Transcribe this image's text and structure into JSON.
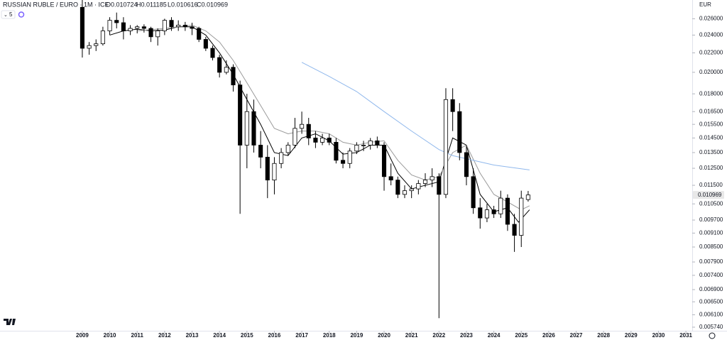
{
  "chart_data": {
    "type": "candlestick",
    "title": "RUSSIAN RUBLE / EURO · 1M · ICE",
    "ohlc_header": [
      "O0.010724",
      "H0.011185",
      "L0.010616",
      "C0.010969"
    ],
    "indicator_badge": "5",
    "currency": "EUR",
    "log_scale": true,
    "up_color": "#ffffff",
    "down_color": "#000000",
    "x": [
      2009.0,
      2009.25,
      2009.5,
      2009.75,
      2010.0,
      2010.25,
      2010.5,
      2010.75,
      2011.0,
      2011.25,
      2011.5,
      2011.75,
      2012.0,
      2012.25,
      2012.5,
      2012.75,
      2013.0,
      2013.25,
      2013.5,
      2013.75,
      2014.0,
      2014.25,
      2014.5,
      2014.75,
      2015.0,
      2015.25,
      2015.5,
      2015.75,
      2016.0,
      2016.25,
      2016.5,
      2016.75,
      2017.0,
      2017.25,
      2017.5,
      2017.75,
      2018.0,
      2018.25,
      2018.5,
      2018.75,
      2019.0,
      2019.25,
      2019.5,
      2019.75,
      2020.0,
      2020.25,
      2020.5,
      2020.75,
      2021.0,
      2021.25,
      2021.5,
      2021.75,
      2022.0,
      2022.25,
      2022.5,
      2022.75,
      2023.0,
      2023.25,
      2023.5,
      2023.75,
      2024.0,
      2024.25,
      2024.5,
      2024.75,
      2025.0,
      2025.25
    ],
    "open": [
      0.0275,
      0.0225,
      0.0228,
      0.023,
      0.0245,
      0.0258,
      0.0255,
      0.0245,
      0.0248,
      0.025,
      0.0248,
      0.0238,
      0.0245,
      0.0258,
      0.025,
      0.0252,
      0.025,
      0.0248,
      0.0235,
      0.0225,
      0.0215,
      0.02,
      0.0205,
      0.0188,
      0.014,
      0.0165,
      0.014,
      0.0132,
      0.0118,
      0.0128,
      0.0135,
      0.014,
      0.0152,
      0.0155,
      0.0145,
      0.0142,
      0.0145,
      0.0142,
      0.013,
      0.0128,
      0.0136,
      0.014,
      0.014,
      0.0143,
      0.014,
      0.012,
      0.0118,
      0.011,
      0.0112,
      0.0113,
      0.0116,
      0.0118,
      0.012,
      0.011,
      0.0175,
      0.0165,
      0.0135,
      0.012,
      0.0103,
      0.0098,
      0.0102,
      0.01,
      0.0108,
      0.0095,
      0.009,
      0.010724
    ],
    "high": [
      0.0285,
      0.0232,
      0.0235,
      0.025,
      0.0262,
      0.0268,
      0.0262,
      0.0252,
      0.0252,
      0.0253,
      0.025,
      0.0248,
      0.026,
      0.0262,
      0.0258,
      0.0256,
      0.0255,
      0.025,
      0.0238,
      0.0228,
      0.0218,
      0.0212,
      0.0208,
      0.0192,
      0.018,
      0.0175,
      0.015,
      0.014,
      0.0132,
      0.0138,
      0.0142,
      0.016,
      0.0165,
      0.016,
      0.015,
      0.0148,
      0.0148,
      0.0145,
      0.0135,
      0.0138,
      0.0142,
      0.0143,
      0.0145,
      0.0146,
      0.0142,
      0.0128,
      0.012,
      0.0115,
      0.0115,
      0.0118,
      0.0122,
      0.0125,
      0.0122,
      0.0185,
      0.0185,
      0.0172,
      0.014,
      0.0125,
      0.0108,
      0.0105,
      0.0104,
      0.0112,
      0.011,
      0.01,
      0.0112,
      0.011185
    ],
    "low": [
      0.0215,
      0.0218,
      0.0222,
      0.0228,
      0.024,
      0.0248,
      0.0235,
      0.024,
      0.0242,
      0.0243,
      0.0232,
      0.0228,
      0.024,
      0.0245,
      0.0245,
      0.0245,
      0.024,
      0.0232,
      0.0222,
      0.0212,
      0.0195,
      0.0198,
      0.0182,
      0.01,
      0.0125,
      0.0135,
      0.0125,
      0.0108,
      0.011,
      0.0125,
      0.0133,
      0.0138,
      0.0148,
      0.014,
      0.0138,
      0.014,
      0.014,
      0.0128,
      0.0125,
      0.0125,
      0.0134,
      0.0136,
      0.0137,
      0.0138,
      0.0112,
      0.0115,
      0.0108,
      0.0108,
      0.0108,
      0.011,
      0.0114,
      0.0114,
      0.006,
      0.0108,
      0.015,
      0.013,
      0.0115,
      0.01,
      0.0093,
      0.0096,
      0.0098,
      0.0098,
      0.0092,
      0.0083,
      0.0085,
      0.010616
    ],
    "close": [
      0.0225,
      0.0228,
      0.023,
      0.0245,
      0.0258,
      0.0255,
      0.0245,
      0.0248,
      0.025,
      0.0248,
      0.0238,
      0.0245,
      0.0258,
      0.025,
      0.0252,
      0.025,
      0.0248,
      0.0235,
      0.0225,
      0.0215,
      0.02,
      0.0205,
      0.0188,
      0.014,
      0.0165,
      0.014,
      0.0132,
      0.0118,
      0.0128,
      0.0135,
      0.014,
      0.0152,
      0.0155,
      0.0145,
      0.0142,
      0.0145,
      0.0142,
      0.013,
      0.0128,
      0.0136,
      0.014,
      0.014,
      0.0143,
      0.014,
      0.012,
      0.0118,
      0.011,
      0.0112,
      0.0113,
      0.0116,
      0.0118,
      0.012,
      0.011,
      0.0175,
      0.0165,
      0.0135,
      0.012,
      0.0103,
      0.0098,
      0.0102,
      0.01,
      0.0108,
      0.0095,
      0.009,
      0.0108,
      0.010969
    ],
    "series": [
      {
        "color": "#000000",
        "x": [
          2010.0,
          2010.5,
          2011.0,
          2011.5,
          2012.0,
          2012.5,
          2013.0,
          2013.5,
          2014.0,
          2014.5,
          2015.0,
          2015.5,
          2016.0,
          2016.5,
          2017.0,
          2017.5,
          2018.0,
          2018.5,
          2019.0,
          2019.5,
          2020.0,
          2020.5,
          2021.0,
          2021.5,
          2022.0,
          2022.5,
          2023.0,
          2023.5,
          2024.0,
          2024.5,
          2024.9,
          2025.3
        ],
        "values": [
          0.024,
          0.0245,
          0.0247,
          0.0245,
          0.0246,
          0.025,
          0.025,
          0.024,
          0.022,
          0.0198,
          0.0175,
          0.0155,
          0.0135,
          0.0133,
          0.0145,
          0.0148,
          0.0143,
          0.0134,
          0.0135,
          0.014,
          0.014,
          0.0122,
          0.0113,
          0.0115,
          0.0117,
          0.0145,
          0.014,
          0.011,
          0.0101,
          0.0103,
          0.0096,
          0.0102
        ]
      },
      {
        "color": "#9a9a9a",
        "x": [
          2011.0,
          2012.0,
          2013.0,
          2013.5,
          2014.0,
          2014.5,
          2015.0,
          2015.5,
          2016.0,
          2016.5,
          2017.0,
          2017.5,
          2018.0,
          2018.5,
          2019.0,
          2019.5,
          2020.0,
          2020.5,
          2021.0,
          2021.5,
          2022.0,
          2022.5,
          2023.0,
          2023.5,
          2024.0,
          2024.5,
          2025.0,
          2025.3
        ],
        "values": [
          0.0245,
          0.0248,
          0.0252,
          0.0245,
          0.0232,
          0.0212,
          0.019,
          0.017,
          0.0152,
          0.0148,
          0.015,
          0.015,
          0.0148,
          0.0142,
          0.014,
          0.0142,
          0.0143,
          0.013,
          0.0121,
          0.0118,
          0.012,
          0.0135,
          0.014,
          0.0122,
          0.011,
          0.0106,
          0.0102,
          0.0104
        ]
      },
      {
        "color": "#90b8ec",
        "x": [
          2017.0,
          2018.0,
          2019.0,
          2020.0,
          2021.0,
          2022.0,
          2022.5,
          2023.0,
          2024.0,
          2025.3
        ],
        "values": [
          0.021,
          0.0196,
          0.0182,
          0.0165,
          0.015,
          0.0137,
          0.0133,
          0.0131,
          0.0127,
          0.0124
        ]
      }
    ],
    "last_price": {
      "value": 0.010969,
      "label": "0.010969"
    },
    "xlim": [
      2006,
      2031.23
    ],
    "xticks": [
      2009,
      2010,
      2011,
      2012,
      2013,
      2014,
      2015,
      2016,
      2017,
      2018,
      2019,
      2020,
      2021,
      2022,
      2023,
      2024,
      2025,
      2026,
      2027,
      2028,
      2029,
      2030,
      2031
    ],
    "ylim": [
      0.00564,
      0.0285
    ],
    "yticks": [
      {
        "value": 0.026,
        "label": "0.026000"
      },
      {
        "value": 0.024,
        "label": "0.024000"
      },
      {
        "value": 0.022,
        "label": "0.022000"
      },
      {
        "value": 0.02,
        "label": "0.020000"
      },
      {
        "value": 0.018,
        "label": "0.018000"
      },
      {
        "value": 0.0165,
        "label": "0.016500"
      },
      {
        "value": 0.0155,
        "label": "0.015500"
      },
      {
        "value": 0.0145,
        "label": "0.014500"
      },
      {
        "value": 0.0135,
        "label": "0.013500"
      },
      {
        "value": 0.0125,
        "label": "0.012500"
      },
      {
        "value": 0.0115,
        "label": "0.011500"
      },
      {
        "value": 0.0105,
        "label": "0.010500"
      },
      {
        "value": 0.0097,
        "label": "0.009700"
      },
      {
        "value": 0.0091,
        "label": "0.009100"
      },
      {
        "value": 0.0085,
        "label": "0.008500"
      },
      {
        "value": 0.0079,
        "label": "0.007900"
      },
      {
        "value": 0.0074,
        "label": "0.007400"
      },
      {
        "value": 0.0069,
        "label": "0.006900"
      },
      {
        "value": 0.0065,
        "label": "0.006500"
      },
      {
        "value": 0.0061,
        "label": "0.006100"
      },
      {
        "value": 0.00574,
        "label": "0.005740"
      }
    ]
  }
}
